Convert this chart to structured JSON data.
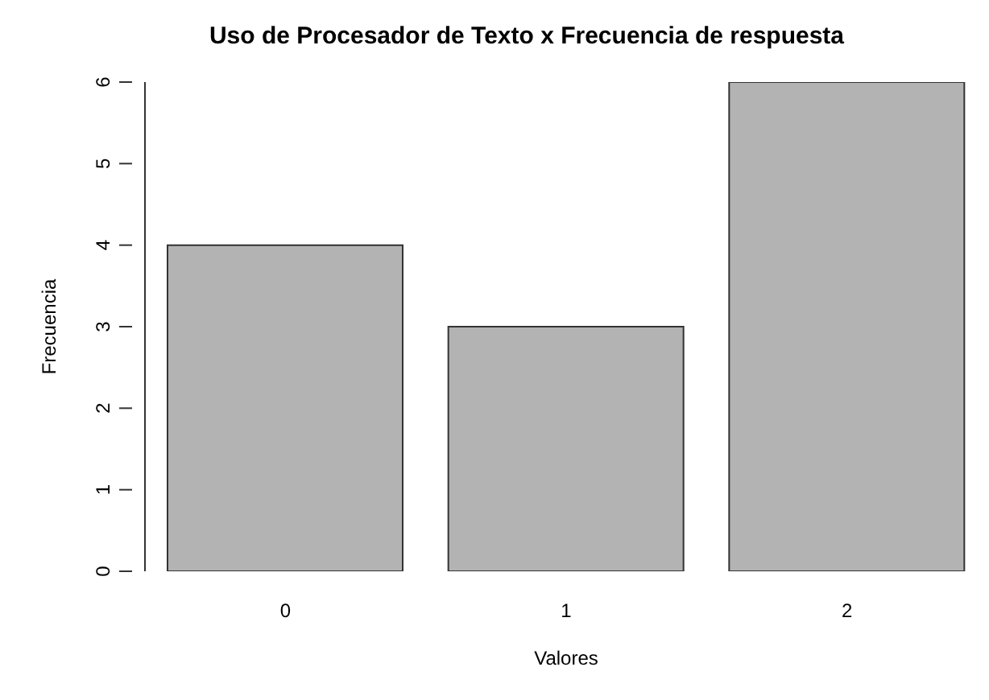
{
  "chart_data": {
    "type": "bar",
    "title": "Uso de Procesador de Texto x Frecuencia de respuesta",
    "xlabel": "Valores",
    "ylabel": "Frecuencia",
    "categories": [
      "0",
      "1",
      "2"
    ],
    "values": [
      4,
      3,
      6
    ],
    "color": "#b3b3b3",
    "ylim": [
      0,
      6
    ],
    "yticks": [
      0,
      1,
      2,
      3,
      4,
      5,
      6
    ],
    "grid": false
  }
}
